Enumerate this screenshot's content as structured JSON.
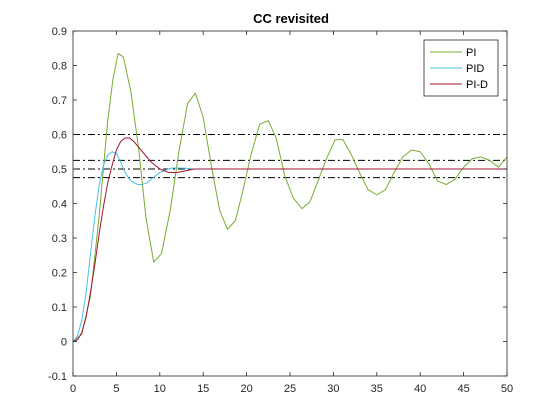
{
  "chart_data": {
    "type": "line",
    "title": "CC revisited",
    "xlabel": "",
    "ylabel": "",
    "xlim": [
      0,
      50
    ],
    "ylim": [
      -0.1,
      0.9
    ],
    "xticks": [
      0,
      5,
      10,
      15,
      20,
      25,
      30,
      35,
      40,
      45,
      50
    ],
    "yticks": [
      -0.1,
      0,
      0.1,
      0.2,
      0.3,
      0.4,
      0.5,
      0.6,
      0.7,
      0.8,
      0.9
    ],
    "grid": false,
    "legend_position": "top-right",
    "reference_lines": [
      {
        "y": 0.6,
        "style": "dash-dot",
        "color": "#000000"
      },
      {
        "y": 0.525,
        "style": "dash-dot",
        "color": "#000000"
      },
      {
        "y": 0.5,
        "style": "dash-dot",
        "color": "#000000"
      },
      {
        "y": 0.475,
        "style": "dash-dot",
        "color": "#000000"
      }
    ],
    "series": [
      {
        "name": "PI",
        "color": "#77AC30",
        "points": [
          [
            0,
            0
          ],
          [
            1,
            0.02
          ],
          [
            2,
            0.13
          ],
          [
            3,
            0.36
          ],
          [
            4,
            0.64
          ],
          [
            4.6,
            0.76
          ],
          [
            5.2,
            0.835
          ],
          [
            5.8,
            0.825
          ],
          [
            6.7,
            0.72
          ],
          [
            7.6,
            0.55
          ],
          [
            8.4,
            0.36
          ],
          [
            9.3,
            0.23
          ],
          [
            10.2,
            0.255
          ],
          [
            11.2,
            0.38
          ],
          [
            12.2,
            0.55
          ],
          [
            13.2,
            0.69
          ],
          [
            14.1,
            0.72
          ],
          [
            15.0,
            0.65
          ],
          [
            16.0,
            0.5
          ],
          [
            16.9,
            0.38
          ],
          [
            17.8,
            0.325
          ],
          [
            18.7,
            0.35
          ],
          [
            19.6,
            0.44
          ],
          [
            20.5,
            0.54
          ],
          [
            21.5,
            0.63
          ],
          [
            22.5,
            0.64
          ],
          [
            23.4,
            0.59
          ],
          [
            24.4,
            0.48
          ],
          [
            25.4,
            0.415
          ],
          [
            26.4,
            0.385
          ],
          [
            27.3,
            0.405
          ],
          [
            28.3,
            0.47
          ],
          [
            29.2,
            0.53
          ],
          [
            30.2,
            0.585
          ],
          [
            31.1,
            0.585
          ],
          [
            32.0,
            0.545
          ],
          [
            33.0,
            0.49
          ],
          [
            34.0,
            0.44
          ],
          [
            35.0,
            0.425
          ],
          [
            36.0,
            0.44
          ],
          [
            37.0,
            0.49
          ],
          [
            38.0,
            0.535
          ],
          [
            39.0,
            0.555
          ],
          [
            40.0,
            0.55
          ],
          [
            41.0,
            0.515
          ],
          [
            42.0,
            0.465
          ],
          [
            43.0,
            0.455
          ],
          [
            44.0,
            0.47
          ],
          [
            45.0,
            0.505
          ],
          [
            46.0,
            0.53
          ],
          [
            47.0,
            0.535
          ],
          [
            48.0,
            0.525
          ],
          [
            49.0,
            0.505
          ],
          [
            50.0,
            0.535
          ]
        ]
      },
      {
        "name": "PID",
        "color": "#4DBEEE",
        "points": [
          [
            0,
            0
          ],
          [
            0.5,
            0.015
          ],
          [
            1,
            0.06
          ],
          [
            1.5,
            0.14
          ],
          [
            2,
            0.25
          ],
          [
            2.5,
            0.36
          ],
          [
            3,
            0.45
          ],
          [
            3.5,
            0.51
          ],
          [
            4,
            0.54
          ],
          [
            4.5,
            0.55
          ],
          [
            5,
            0.545
          ],
          [
            5.5,
            0.52
          ],
          [
            6,
            0.49
          ],
          [
            6.5,
            0.47
          ],
          [
            7,
            0.46
          ],
          [
            7.5,
            0.455
          ],
          [
            8,
            0.455
          ],
          [
            8.5,
            0.46
          ],
          [
            9,
            0.47
          ],
          [
            9.5,
            0.48
          ],
          [
            10,
            0.49
          ],
          [
            10.5,
            0.495
          ],
          [
            11,
            0.5
          ],
          [
            11.5,
            0.503
          ],
          [
            12,
            0.503
          ],
          [
            13,
            0.502
          ],
          [
            14,
            0.5
          ],
          [
            15,
            0.5
          ],
          [
            16,
            0.5
          ],
          [
            17,
            0.5
          ],
          [
            18,
            0.5
          ]
        ]
      },
      {
        "name": "PI-D",
        "color": "#A2142F",
        "points": [
          [
            0,
            0
          ],
          [
            0.5,
            0.005
          ],
          [
            1,
            0.025
          ],
          [
            1.5,
            0.07
          ],
          [
            2,
            0.14
          ],
          [
            2.5,
            0.22
          ],
          [
            3,
            0.31
          ],
          [
            3.5,
            0.39
          ],
          [
            4,
            0.46
          ],
          [
            4.5,
            0.51
          ],
          [
            5,
            0.555
          ],
          [
            5.5,
            0.58
          ],
          [
            6,
            0.59
          ],
          [
            6.5,
            0.59
          ],
          [
            7,
            0.58
          ],
          [
            7.5,
            0.565
          ],
          [
            8,
            0.55
          ],
          [
            8.5,
            0.535
          ],
          [
            9,
            0.52
          ],
          [
            10,
            0.5
          ],
          [
            11,
            0.49
          ],
          [
            12,
            0.49
          ],
          [
            13,
            0.495
          ],
          [
            14,
            0.5
          ],
          [
            15,
            0.5
          ],
          [
            16,
            0.5
          ],
          [
            18,
            0.5
          ],
          [
            20,
            0.5
          ],
          [
            25,
            0.5
          ],
          [
            30,
            0.5
          ],
          [
            35,
            0.5
          ],
          [
            40,
            0.5
          ],
          [
            45,
            0.5
          ],
          [
            50,
            0.5
          ]
        ]
      }
    ]
  }
}
